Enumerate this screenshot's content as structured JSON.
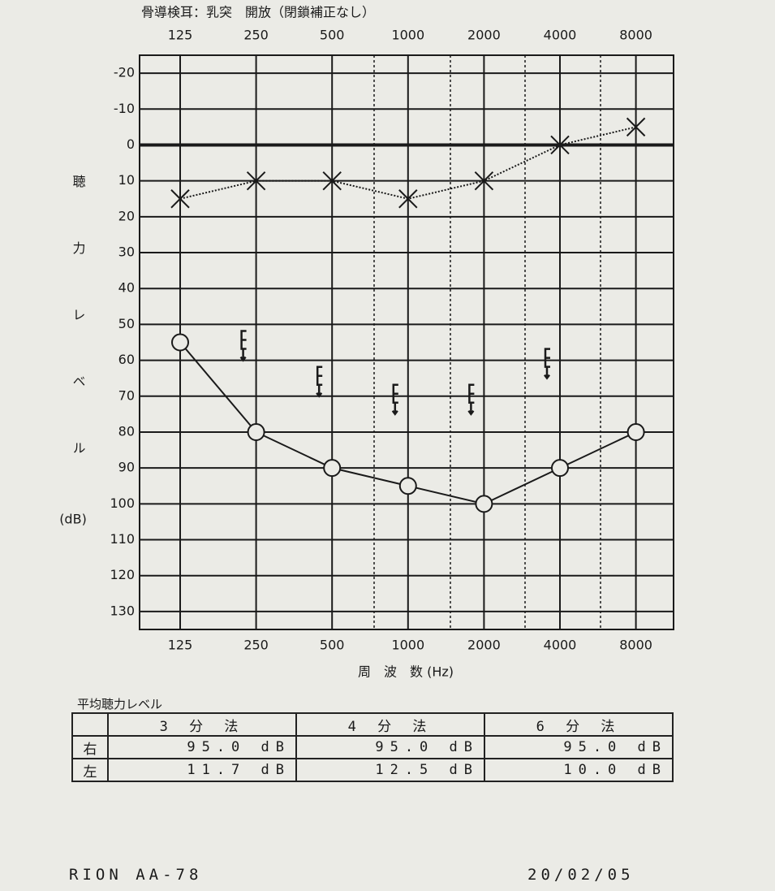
{
  "header": "骨導検耳：乳突　開放（閉鎖補正なし）",
  "chart_data": {
    "type": "line",
    "categories": [
      "125",
      "250",
      "500",
      "1000",
      "2000",
      "4000",
      "8000"
    ],
    "x_label": "周　波　数 (Hz)",
    "y_label": "聴力レベル",
    "y_unit": "(dB)",
    "ylim": [
      135,
      -25
    ],
    "yticks": [
      -20,
      -10,
      0,
      10,
      20,
      30,
      40,
      50,
      60,
      70,
      80,
      90,
      100,
      110,
      120,
      130
    ],
    "grid": true,
    "series": [
      {
        "color": "#1a1a1a",
        "marker": "circle",
        "line": "solid",
        "values": [
          55,
          80,
          90,
          95,
          100,
          90,
          80
        ]
      },
      {
        "color": "#1a1a1a",
        "marker": "cross",
        "line": "dotted",
        "values": [
          15,
          10,
          10,
          15,
          10,
          0,
          -5
        ]
      },
      {
        "color": "#1a1a1a",
        "marker": "bracket",
        "line": null,
        "values": [
          null,
          55,
          65,
          70,
          70,
          60,
          null
        ]
      }
    ]
  },
  "table": {
    "title": "平均聴力レベル",
    "columns": [
      "3 分 法",
      "4 分 法",
      "6 分 法"
    ],
    "rows": [
      [
        "右",
        "95.0 dB",
        "95.0 dB",
        "95.0 dB"
      ],
      [
        "左",
        "11.7 dB",
        "12.5 dB",
        "10.0 dB"
      ]
    ]
  },
  "footer": {
    "model": "RION AA-78",
    "date": "20/02/05"
  }
}
